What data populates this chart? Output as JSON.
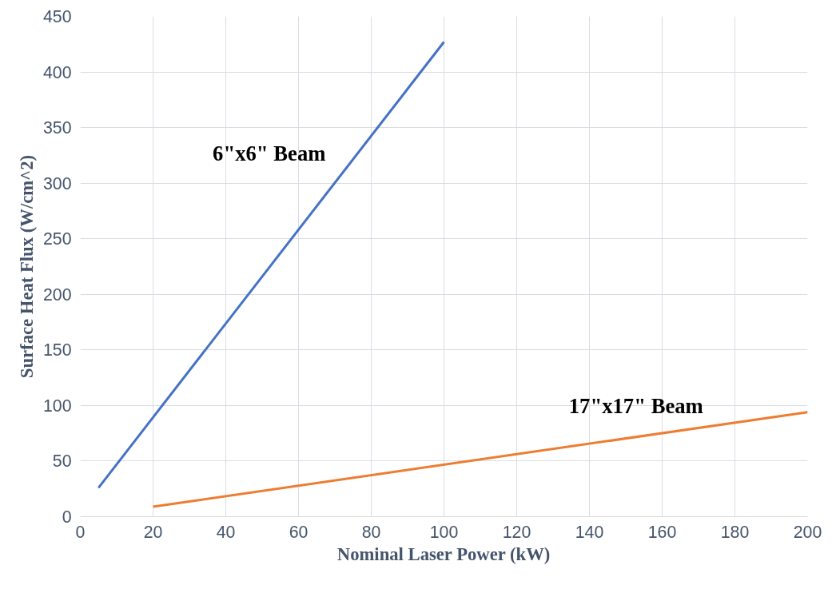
{
  "chart_data": {
    "type": "line",
    "xlabel": "Nominal Laser Power (kW)",
    "ylabel": "Surface Heat Flux (W/cm^2)",
    "xlim": [
      0,
      200
    ],
    "xticks": [
      0,
      20,
      40,
      60,
      80,
      100,
      120,
      140,
      160,
      180,
      200
    ],
    "ylim": [
      0,
      450
    ],
    "yticks": [
      0,
      50,
      100,
      150,
      200,
      250,
      300,
      350,
      400,
      450
    ],
    "grid": true,
    "marker": "none",
    "line_style": "solid",
    "series": [
      {
        "name": "6\"x6\" Beam",
        "color": "#4472c4",
        "x": [
          5,
          100
        ],
        "values": [
          26,
          427
        ]
      },
      {
        "name": "17\"x17\" Beam",
        "color": "#ed7d31",
        "x": [
          20,
          200
        ],
        "values": [
          9,
          94
        ]
      }
    ]
  }
}
